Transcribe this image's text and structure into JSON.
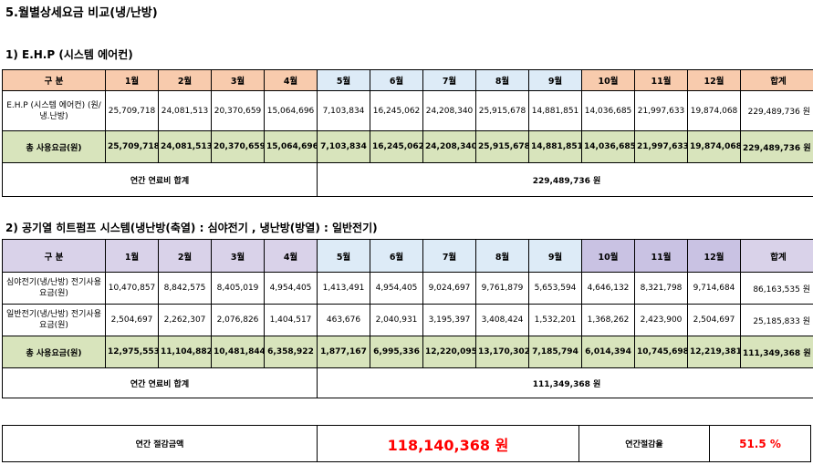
{
  "title": "5.월별상세요금 비교(냉/난방)",
  "months": [
    "1월",
    "2월",
    "3월",
    "4월",
    "5월",
    "6월",
    "7월",
    "8월",
    "9월",
    "10월",
    "11월",
    "12월"
  ],
  "header_label": "구 분",
  "header_total": "합계",
  "section1": {
    "title": "1) E.H.P (시스템 에어컨)",
    "rows": [
      {
        "label": "E.H.P (시스템 에어컨)\n(원/냉.난방)",
        "values": [
          "25,709,718",
          "24,081,513",
          "20,370,659",
          "15,064,696",
          "7,103,834",
          "16,245,062",
          "24,208,340",
          "25,915,678",
          "14,881,851",
          "14,036,685",
          "21,997,633",
          "19,874,068"
        ],
        "total": "229,489,736 원"
      }
    ],
    "sum_row": {
      "label": "총 사용요금(원)",
      "values": [
        "25,709,718",
        "24,081,513",
        "20,370,659",
        "15,064,696",
        "7,103,834",
        "16,245,062",
        "24,208,340",
        "25,915,678",
        "14,881,851",
        "14,036,685",
        "21,997,633",
        "19,874,068"
      ],
      "total": "229,489,736 원"
    },
    "annual_label": "연간 연료비 합계",
    "annual_value": "229,489,736 원"
  },
  "section2": {
    "title": "2) 공기열 히트펌프 시스템(냉난방(축열) : 심야전기 , 냉난방(방열) : 일반전기)",
    "rows": [
      {
        "label": "심야전기(냉/난방)\n전기사용요금(원)",
        "values": [
          "10,470,857",
          "8,842,575",
          "8,405,019",
          "4,954,405",
          "1,413,491",
          "4,954,405",
          "9,024,697",
          "9,761,879",
          "5,653,594",
          "4,646,132",
          "8,321,798",
          "9,714,684"
        ],
        "total": "86,163,535 원"
      },
      {
        "label": "일반전기(냉/난방)\n전기사용요금(원)",
        "values": [
          "2,504,697",
          "2,262,307",
          "2,076,826",
          "1,404,517",
          "463,676",
          "2,040,931",
          "3,195,397",
          "3,408,424",
          "1,532,201",
          "1,368,262",
          "2,423,900",
          "2,504,697"
        ],
        "total": "25,185,833 원"
      }
    ],
    "sum_row": {
      "label": "총 사용요금(원)",
      "values": [
        "12,975,553",
        "11,104,882",
        "10,481,844",
        "6,358,922",
        "1,877,167",
        "6,995,336",
        "12,220,095",
        "13,170,302",
        "7,185,794",
        "6,014,394",
        "10,745,698",
        "12,219,381"
      ],
      "total": "111,349,368 원"
    },
    "annual_label": "연간 연료비 합계",
    "annual_value": "111,349,368 원"
  },
  "savings": {
    "label": "연간 절감금액",
    "amount": "118,140,368 원",
    "rate_label": "연간절감율",
    "rate": "51.5 %"
  },
  "colors": {
    "header_orange": "#f8cbad",
    "header_blue": "#ddebf7",
    "header_purple": "#d9d2e9",
    "sum_green": "#d8e4bc",
    "highlight_red": "#ff0000"
  }
}
